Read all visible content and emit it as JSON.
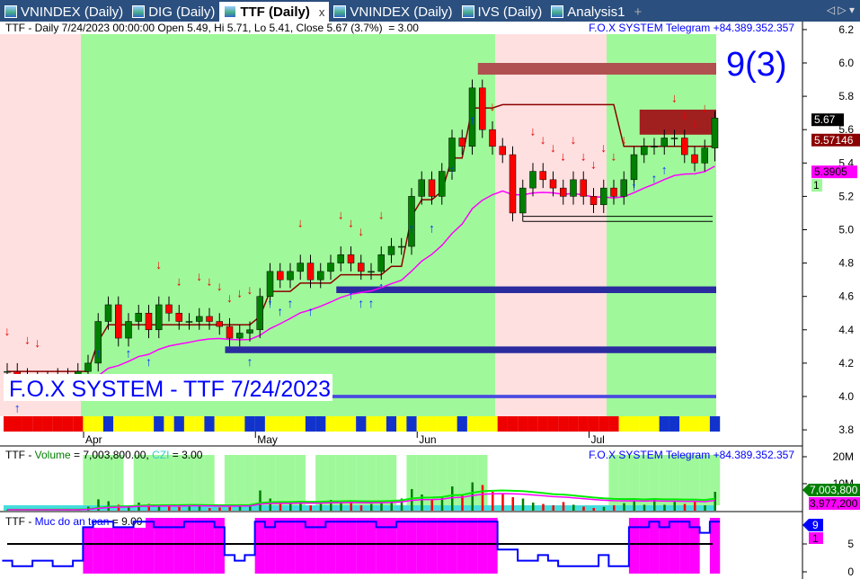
{
  "tabs": [
    {
      "label": "VNINDEX (Daily)",
      "active": false
    },
    {
      "label": "DIG (Daily)",
      "active": false
    },
    {
      "label": "TTF (Daily)",
      "active": true
    },
    {
      "label": "VNINDEX (Daily)",
      "active": false
    },
    {
      "label": "IVS (Daily)",
      "active": false
    },
    {
      "label": "Analysis1",
      "active": false
    }
  ],
  "tab_close": "x",
  "tab_add": "+",
  "tab_nav": "◁ ▷ ▾",
  "price_pane": {
    "header": "TTF - Daily 7/24/2023 00:00:00 Open 5.49, Hi 5.71, Lo 5.41, Close 5.67 (3.7%)  = 3.00",
    "telegram": "F.O.X SYSTEM Telegram +84.389.352.357",
    "big_label": "9(3)",
    "watermark": "F.O.X SYSTEM - TTF 7/24/2023",
    "badges": {
      "close": "5.67",
      "stop": "5.57146",
      "ma": "5.3905",
      "signal": "1"
    }
  },
  "volume_pane": {
    "header_prefix": "TTF - ",
    "volume_label": "Volume",
    "volume_value": " = 7,003,800.00, ",
    "czi_label": "CZI",
    "czi_value": " = 3.00",
    "telegram": "F.O.X SYSTEM Telegram +84.389.352.357",
    "badges": {
      "volume": "7,003,800",
      "avg": "3,977,200"
    }
  },
  "safety_pane": {
    "header_prefix": "TTF - ",
    "label": "Muc do an toan",
    "value": " = 9.00",
    "badges": {
      "level": "9",
      "flag": "1"
    }
  },
  "colors": {
    "up": "#008000",
    "down": "#ff0000",
    "green_zone": "#9ff99a",
    "pink_zone": "#ffe0e0",
    "ma": "#ff00ff",
    "stop": "#8b0000",
    "band": "#2b2ba0"
  },
  "chart_data": [
    {
      "type": "candlestick",
      "ticker": "TTF",
      "xlabels": [
        {
          "bar": 8,
          "label": "Apr"
        },
        {
          "bar": 25,
          "label": "May"
        },
        {
          "bar": 41,
          "label": "Jun"
        },
        {
          "bar": 58,
          "label": "Jul"
        }
      ],
      "ylim": [
        3.8,
        6.2
      ],
      "yticks": [
        3.8,
        4.0,
        4.2,
        4.4,
        4.6,
        4.8,
        5.0,
        5.2,
        5.4,
        5.6,
        5.8,
        6.0,
        6.2
      ],
      "close": [
        4.15,
        4.12,
        4.1,
        4.08,
        4.1,
        4.12,
        4.1,
        4.15,
        4.2,
        4.45,
        4.55,
        4.35,
        4.45,
        4.5,
        4.4,
        4.55,
        4.5,
        4.45,
        4.45,
        4.48,
        4.45,
        4.42,
        4.35,
        4.38,
        4.4,
        4.6,
        4.75,
        4.7,
        4.75,
        4.8,
        4.7,
        4.75,
        4.8,
        4.85,
        4.8,
        4.75,
        4.75,
        4.85,
        4.9,
        4.9,
        5.2,
        5.3,
        5.2,
        5.35,
        5.55,
        5.5,
        5.85,
        5.6,
        5.5,
        5.45,
        5.1,
        5.25,
        5.35,
        5.3,
        5.25,
        5.2,
        5.3,
        5.2,
        5.15,
        5.25,
        5.2,
        5.3,
        5.45,
        5.5,
        5.5,
        5.55,
        5.55,
        5.45,
        5.4,
        5.49,
        5.67
      ],
      "last_bar": {
        "open": 5.49,
        "high": 5.71,
        "low": 5.41,
        "close": 5.67,
        "change_pct": 3.7
      },
      "zones": [
        {
          "from": 0,
          "to": 8,
          "type": "pink"
        },
        {
          "from": 8,
          "to": 49,
          "type": "green"
        },
        {
          "from": 49,
          "to": 60,
          "type": "pink"
        },
        {
          "from": 60,
          "to": 70,
          "type": "green"
        }
      ],
      "bands": [
        {
          "from_bar": 47,
          "low": 5.93,
          "high": 6.0,
          "color": "#b05050"
        },
        {
          "from_bar": 63,
          "low": 5.57,
          "high": 5.72,
          "color": "#a02020"
        },
        {
          "from_bar": 33,
          "low": 4.62,
          "high": 4.66,
          "color": "#2b2ba0"
        },
        {
          "from_bar": 22,
          "low": 4.26,
          "high": 4.3,
          "color": "#2b2ba0"
        },
        {
          "from_bar": 32,
          "low": 3.99,
          "high": 4.01,
          "color": "#4a4ae0"
        }
      ],
      "levels": [
        {
          "from_bar": 51,
          "value": 5.08
        },
        {
          "from_bar": 51,
          "value": 5.05
        }
      ],
      "sell_signals": [
        0,
        2,
        3,
        15,
        17,
        19,
        20,
        21,
        22,
        23,
        24,
        29,
        33,
        34,
        35,
        37,
        47,
        48,
        52,
        53,
        54,
        55,
        56,
        57,
        58,
        59,
        60,
        61,
        66,
        67,
        68,
        69
      ],
      "buy_signals": [
        1,
        9,
        12,
        14,
        24,
        26,
        27,
        28,
        30,
        34,
        35,
        36,
        37,
        40,
        42,
        44,
        46,
        62,
        64,
        65
      ]
    },
    {
      "type": "bar",
      "name": "Volume",
      "ylim": [
        0,
        22000000
      ],
      "yticks": [
        10000000,
        20000000
      ],
      "ytick_labels": [
        "10M",
        "20M"
      ],
      "values_m": [
        0.3,
        0.2,
        0.4,
        0.3,
        0.2,
        0.5,
        0.4,
        0.2,
        1.5,
        4.2,
        3.5,
        2.2,
        1.8,
        3.0,
        2.5,
        1.5,
        2.0,
        1.4,
        2.2,
        1.8,
        1.0,
        1.2,
        1.4,
        2.0,
        1.8,
        7.5,
        4.5,
        3.0,
        2.5,
        3.5,
        2.0,
        2.5,
        4.0,
        2.8,
        3.5,
        2.0,
        2.5,
        3.0,
        3.5,
        4.5,
        8.0,
        6.0,
        4.0,
        5.0,
        9.0,
        5.5,
        10.5,
        9.5,
        7.0,
        6.5,
        5.0,
        4.5,
        3.0,
        2.5,
        2.0,
        3.2,
        2.2,
        1.5,
        1.0,
        1.4,
        2.0,
        2.8,
        3.5,
        2.2,
        4.5,
        2.2,
        3.3,
        2.5,
        3.2,
        2.0,
        7.0
      ]
    },
    {
      "type": "line",
      "name": "Muc do an toan",
      "ylim": [
        0,
        10
      ],
      "yticks": [
        0,
        5
      ],
      "values": [
        2,
        1,
        1,
        2,
        2,
        1,
        1,
        2,
        8,
        9,
        9,
        8,
        8,
        9,
        9,
        8,
        8,
        8,
        9,
        9,
        9,
        8,
        3,
        2,
        3,
        9,
        8,
        9,
        9,
        9,
        8,
        8,
        9,
        9,
        9,
        9,
        9,
        8,
        8,
        9,
        9,
        9,
        9,
        9,
        9,
        9,
        9,
        9,
        9,
        4,
        4,
        2,
        2,
        3,
        2,
        1,
        1,
        1,
        1,
        3,
        1,
        1,
        8,
        8,
        9,
        8,
        9,
        9,
        8,
        7,
        9
      ],
      "threshold": 5
    }
  ]
}
